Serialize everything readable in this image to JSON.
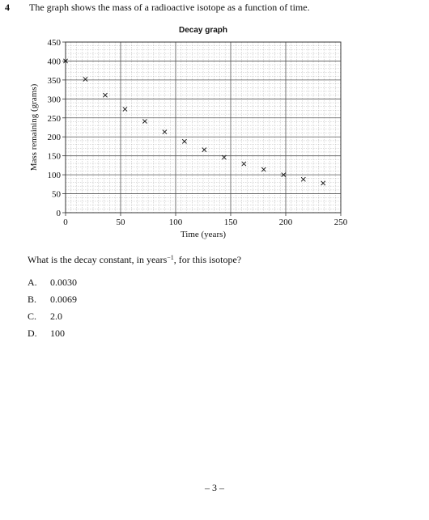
{
  "question": {
    "number": "4",
    "text": "The graph shows the mass of a radioactive isotope as a function of time.",
    "prompt_before": "What is the decay constant, in years",
    "prompt_sup": "−1",
    "prompt_after": ", for this isotope?"
  },
  "options": [
    {
      "letter": "A.",
      "value": "0.0030"
    },
    {
      "letter": "B.",
      "value": "0.0069"
    },
    {
      "letter": "C.",
      "value": "2.0"
    },
    {
      "letter": "D.",
      "value": "100"
    }
  ],
  "page_number": "– 3 –",
  "chart_data": {
    "type": "scatter",
    "title": "Decay graph",
    "xlabel": "Time (years)",
    "ylabel": "Mass remaining (grams)",
    "xlim": [
      0,
      250
    ],
    "ylim": [
      0,
      450
    ],
    "xticks": [
      0,
      50,
      100,
      150,
      200,
      250
    ],
    "yticks": [
      0,
      50,
      100,
      150,
      200,
      250,
      300,
      350,
      400,
      450
    ],
    "grid": true,
    "marker": "x",
    "x": [
      0,
      18,
      36,
      54,
      72,
      90,
      108,
      126,
      144,
      162,
      180,
      198,
      216,
      234
    ],
    "y": [
      400,
      352,
      310,
      273,
      241,
      213,
      188,
      166,
      146,
      129,
      114,
      100,
      88,
      78
    ]
  }
}
